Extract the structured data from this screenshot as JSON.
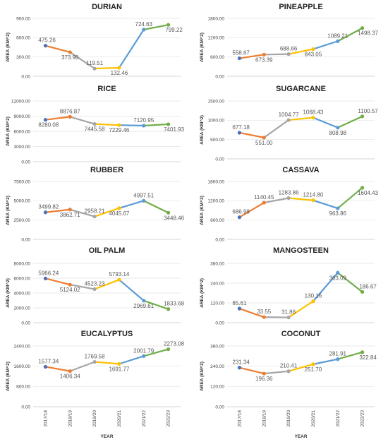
{
  "colors": {
    "segments": [
      "#ED7D31",
      "#A5A5A5",
      "#FFC000",
      "#5B9BD5",
      "#70AD47"
    ],
    "points": [
      "#4472C4",
      "#ED7D31",
      "#A5A5A5",
      "#FFC000",
      "#5B9BD5",
      "#70AD47"
    ]
  },
  "chart_data": [
    {
      "type": "line",
      "title": "DURIAN",
      "xlabel": "",
      "ylabel": "AREA (KM^2)",
      "categories": [
        "2017/18",
        "2018/19",
        "2019/20",
        "2020/21",
        "2021/22",
        "2022/23"
      ],
      "values": [
        475.26,
        373.9,
        119.51,
        132.46,
        724.63,
        799.22
      ],
      "value_labels": [
        "475.26",
        "373.90",
        "119.51",
        "132.46",
        "724.63",
        "799.22"
      ],
      "ylim": [
        0,
        900
      ],
      "yticks": [
        "0.00",
        "300.00",
        "600.00",
        "900.00"
      ],
      "grid": true,
      "show_xticks": false
    },
    {
      "type": "line",
      "title": "PINEAPPLE",
      "xlabel": "",
      "ylabel": "AREA (KM^2)",
      "categories": [
        "2017/18",
        "2018/19",
        "2019/20",
        "2020/21",
        "2021/22",
        "2022/23"
      ],
      "values": [
        558.67,
        673.39,
        688.66,
        843.05,
        1089.21,
        1498.37
      ],
      "value_labels": [
        "558.67",
        "673.39",
        "688.66",
        "843.05",
        "1089.21",
        "1498.37"
      ],
      "ylim": [
        0,
        1800
      ],
      "yticks": [
        "0.00",
        "600.00",
        "1200.00",
        "1800.00"
      ],
      "grid": true,
      "show_xticks": false
    },
    {
      "type": "line",
      "title": "RICE",
      "xlabel": "",
      "ylabel": "AREA (KM^2)",
      "categories": [
        "2017/18",
        "2018/19",
        "2019/20",
        "2020/21",
        "2021/22",
        "2022/23"
      ],
      "values": [
        8280.08,
        8876.87,
        7445.58,
        7229.46,
        7120.95,
        7401.93
      ],
      "value_labels": [
        "8280.08",
        "8876.87",
        "7445.58",
        "7229.46",
        "7120.95",
        "7401.93"
      ],
      "ylim": [
        0,
        12000
      ],
      "yticks": [
        "0.00",
        "3000.00",
        "6000.00",
        "9000.00",
        "12000.00"
      ],
      "grid": true,
      "show_xticks": false
    },
    {
      "type": "line",
      "title": "SUGARCANE",
      "xlabel": "",
      "ylabel": "AREA (KM^2)",
      "categories": [
        "2017/18",
        "2018/19",
        "2019/20",
        "2020/21",
        "2021/22",
        "2022/23"
      ],
      "values": [
        677.18,
        551.0,
        1004.77,
        1068.43,
        808.98,
        1100.57
      ],
      "value_labels": [
        "677.18",
        "551.00",
        "1004.77",
        "1068.43",
        "808.98",
        "1100.57"
      ],
      "ylim": [
        0,
        1500
      ],
      "yticks": [
        "0.00",
        "500.00",
        "1000.00",
        "1500.00"
      ],
      "grid": true,
      "show_xticks": false
    },
    {
      "type": "line",
      "title": "RUBBER",
      "xlabel": "",
      "ylabel": "AREA (KM^2)",
      "categories": [
        "2017/18",
        "2018/19",
        "2019/20",
        "2020/21",
        "2021/22",
        "2022/23"
      ],
      "values": [
        3499.82,
        3862.71,
        2958.21,
        4045.67,
        4997.51,
        3448.46
      ],
      "value_labels": [
        "3499.82",
        "3862.71",
        "2958.21",
        "4045.67",
        "4997.51",
        "3448.46"
      ],
      "ylim": [
        0,
        7500
      ],
      "yticks": [
        "0.00",
        "2500.00",
        "5000.00",
        "7500.00"
      ],
      "grid": true,
      "show_xticks": false
    },
    {
      "type": "line",
      "title": "CASSAVA",
      "xlabel": "",
      "ylabel": "AREA (KM^2)",
      "categories": [
        "2017/18",
        "2018/19",
        "2019/20",
        "2020/21",
        "2021/22",
        "2022/23"
      ],
      "values": [
        686.98,
        1140.45,
        1283.86,
        1214.8,
        963.86,
        1604.43
      ],
      "value_labels": [
        "686.98",
        "1140.45",
        "1283.86",
        "1214.80",
        "963.86",
        "1604.43"
      ],
      "ylim": [
        0,
        1800
      ],
      "yticks": [
        "0.00",
        "600.00",
        "1200.00",
        "1800.00"
      ],
      "grid": true,
      "show_xticks": false
    },
    {
      "type": "line",
      "title": "OIL PALM",
      "xlabel": "",
      "ylabel": "AREA (KM^2)",
      "categories": [
        "2017/18",
        "2018/19",
        "2019/20",
        "2020/21",
        "2021/22",
        "2022/23"
      ],
      "values": [
        5966.24,
        5124.02,
        4523.23,
        5793.14,
        2969.61,
        1833.68
      ],
      "value_labels": [
        "5966.24",
        "5124.02",
        "4523.23",
        "5793.14",
        "2969.61",
        "1833.68"
      ],
      "ylim": [
        0,
        8000
      ],
      "yticks": [
        "0.00",
        "2000.00",
        "4000.00",
        "6000.00",
        "8000.00"
      ],
      "grid": true,
      "show_xticks": false
    },
    {
      "type": "line",
      "title": "MANGOSTEEN",
      "xlabel": "",
      "ylabel": "AREA (KM^2)",
      "categories": [
        "2017/18",
        "2018/19",
        "2019/20",
        "2020/21",
        "2021/22",
        "2022/23"
      ],
      "values": [
        85.61,
        33.55,
        31.86,
        130.16,
        303.09,
        186.67
      ],
      "value_labels": [
        "85.61",
        "33.55",
        "31.86",
        "130.16",
        "303.09",
        "186.67"
      ],
      "ylim": [
        0,
        360
      ],
      "yticks": [
        "0.00",
        "120.00",
        "240.00",
        "360.00"
      ],
      "grid": true,
      "show_xticks": false
    },
    {
      "type": "line",
      "title": "EUCALYPTUS",
      "xlabel": "YEAR",
      "ylabel": "AREA (KM^2)",
      "categories": [
        "2017/18",
        "2018/19",
        "2019/20",
        "2020/21",
        "2021/22",
        "2022/23"
      ],
      "values": [
        1577.34,
        1406.34,
        1769.58,
        1691.77,
        2001.79,
        2273.08
      ],
      "value_labels": [
        "1577.34",
        "1406.34",
        "1769.58",
        "1691.77",
        "2001.79",
        "2273.08"
      ],
      "ylim": [
        0,
        2400
      ],
      "yticks": [
        "0.00",
        "800.00",
        "1600.00",
        "2400.00"
      ],
      "grid": true,
      "show_xticks": true
    },
    {
      "type": "line",
      "title": "COCONUT",
      "xlabel": "YEAR",
      "ylabel": "AREA (KM^2)",
      "categories": [
        "2017/18",
        "2018/19",
        "2019/20",
        "2020/21",
        "2021/22",
        "2022/23"
      ],
      "values": [
        231.34,
        196.36,
        210.41,
        251.7,
        281.91,
        322.84
      ],
      "value_labels": [
        "231.34",
        "196.36",
        "210.41",
        "251.70",
        "281.91",
        "322.84"
      ],
      "ylim": [
        0,
        360
      ],
      "yticks": [
        "0.00",
        "120.00",
        "240.00",
        "360.00"
      ],
      "grid": true,
      "show_xticks": true
    }
  ]
}
